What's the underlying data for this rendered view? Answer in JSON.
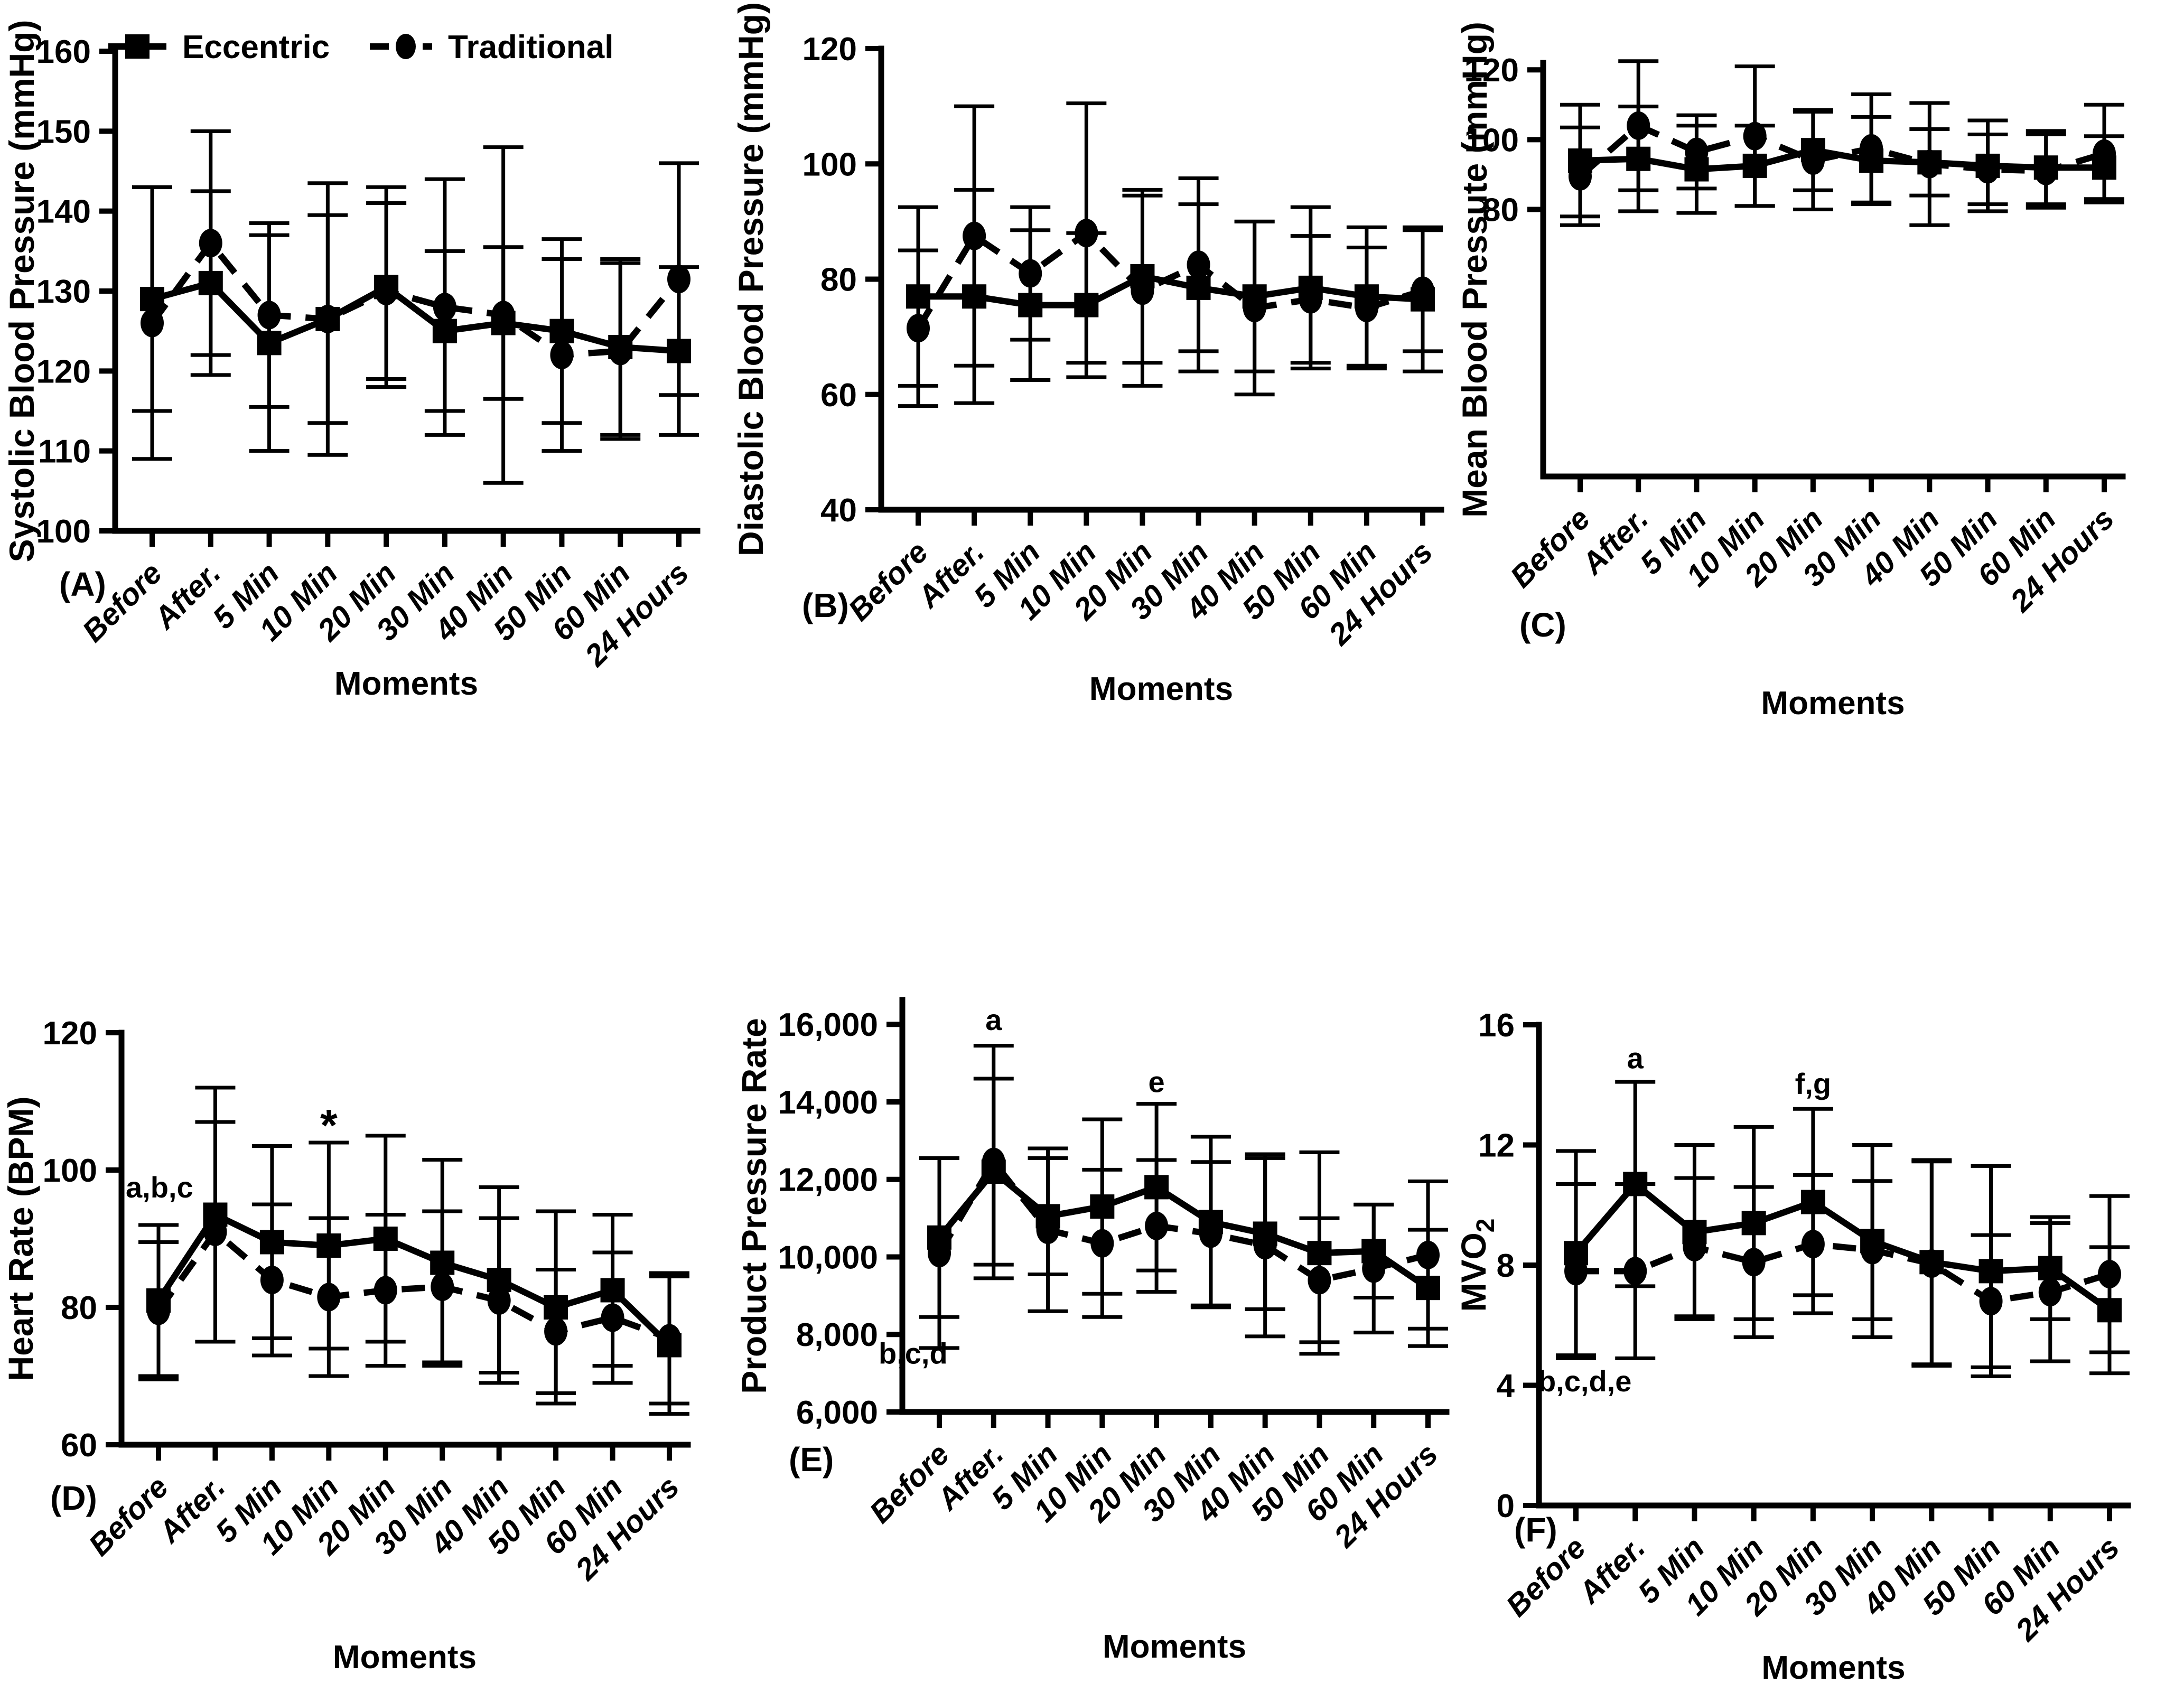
{
  "figure": {
    "background": "#ffffff",
    "ink": "#000000"
  },
  "legend": {
    "items": [
      {
        "label": "Eccentric",
        "marker": "square",
        "line": "solid"
      },
      {
        "label": "Traditional",
        "marker": "circle",
        "line": "dashed"
      }
    ]
  },
  "chart_data": [
    {
      "panel": "A",
      "letter": "(A)",
      "type": "line",
      "ylabel": "Systolic Blood Pressure (mmHg)",
      "xlabel": "Moments",
      "categories": [
        "Before",
        "After.",
        "5 Min",
        "10 Min",
        "20 Min",
        "30 Min",
        "40 Min",
        "50 Min",
        "60 Min",
        "24 Hours"
      ],
      "ylim": [
        100,
        160
      ],
      "yticks": [
        100,
        110,
        120,
        130,
        140,
        150,
        160
      ],
      "ytick_labels": [
        "100",
        "110",
        "120",
        "130",
        "140",
        "150",
        "160"
      ],
      "show_legend": true,
      "series": [
        {
          "name": "Eccentric",
          "marker": "square",
          "linestyle": "solid",
          "values": [
            129,
            131,
            123.5,
            126.5,
            130.5,
            125,
            126,
            125,
            123,
            122.5
          ],
          "sd": [
            14,
            11.5,
            13.5,
            13,
            12.5,
            10,
            9.5,
            11.5,
            11,
            10.5
          ]
        },
        {
          "name": "Traditional",
          "marker": "circle",
          "linestyle": "dashed",
          "values": [
            126,
            136,
            127,
            126.5,
            130,
            128,
            127,
            122,
            122.5,
            131.5
          ],
          "sd": [
            17,
            14,
            11.5,
            17,
            11,
            16,
            21,
            12,
            11,
            14.5
          ]
        }
      ],
      "annotations": []
    },
    {
      "panel": "B",
      "letter": "(B)",
      "type": "line",
      "ylabel": "Diastolic Blood Pressure (mmHg)",
      "xlabel": "Moments",
      "categories": [
        "Before",
        "After.",
        "5 Min",
        "10 Min",
        "20 Min",
        "30 Min",
        "40 Min",
        "50 Min",
        "60 Min",
        "24 Hours"
      ],
      "ylim": [
        40,
        120
      ],
      "yticks": [
        40,
        60,
        80,
        100,
        120
      ],
      "ytick_labels": [
        "40",
        "60",
        "80",
        "100",
        "120"
      ],
      "show_legend": false,
      "series": [
        {
          "name": "Eccentric",
          "marker": "square",
          "linestyle": "solid",
          "values": [
            77,
            77,
            75.5,
            75.5,
            80.5,
            78.5,
            77,
            78.5,
            77,
            76.5
          ],
          "sd": [
            15.5,
            18.5,
            13,
            12.5,
            15,
            14.5,
            13,
            14,
            12,
            12.5
          ]
        },
        {
          "name": "Traditional",
          "marker": "circle",
          "linestyle": "dashed",
          "values": [
            71.5,
            87.5,
            81,
            88,
            78,
            82.5,
            75,
            76.5,
            75,
            78
          ],
          "sd": [
            13.5,
            22.5,
            11.5,
            22.5,
            16.5,
            15,
            15,
            11,
            10.5,
            10.5
          ]
        }
      ],
      "annotations": []
    },
    {
      "panel": "C",
      "letter": "(C)",
      "type": "line",
      "ylabel": "Mean Blood Pressute (mmHg)",
      "xlabel": "Moments",
      "categories": [
        "Before",
        "After.",
        "5 Min",
        "10 Min",
        "20 Min",
        "30 Min",
        "40 Min",
        "50 Min",
        "60 Min",
        "24 Hours"
      ],
      "ylim": [
        3.5,
        122
      ],
      "yticks": [
        80,
        100,
        120
      ],
      "ytick_labels": [
        "80",
        "100",
        "120"
      ],
      "show_legend": false,
      "series": [
        {
          "name": "Eccentric",
          "marker": "square",
          "linestyle": "solid",
          "values": [
            94,
            94.5,
            91.5,
            92.5,
            97,
            94,
            93.5,
            92.5,
            92,
            92
          ],
          "sd": [
            16,
            15,
            12.5,
            11.5,
            11.5,
            12.5,
            9.5,
            13,
            10.5,
            9
          ]
        },
        {
          "name": "Traditional",
          "marker": "circle",
          "linestyle": "dashed",
          "values": [
            89.5,
            104,
            96.5,
            101,
            94,
            97.5,
            93,
            91.5,
            91,
            96
          ],
          "sd": [
            14,
            18.5,
            10.5,
            20,
            14,
            15.5,
            17.5,
            10,
            10.5,
            14
          ]
        }
      ],
      "annotations": []
    },
    {
      "panel": "D",
      "letter": "(D)",
      "type": "line",
      "ylabel": "Heart Rate (BPM)",
      "xlabel": "Moments",
      "categories": [
        "Before",
        "After.",
        "5 Min",
        "10 Min",
        "20 Min",
        "30 Min",
        "40 Min",
        "50 Min",
        "60 Min",
        "24 Hours"
      ],
      "ylim": [
        60,
        120
      ],
      "yticks": [
        60,
        80,
        100,
        120
      ],
      "ytick_labels": [
        "60",
        "80",
        "100",
        "120"
      ],
      "show_legend": false,
      "series": [
        {
          "name": "Eccentric",
          "marker": "square",
          "linestyle": "solid",
          "values": [
            81,
            93.5,
            89.5,
            89,
            90,
            86.5,
            84,
            80,
            82.5,
            74.5
          ],
          "sd": [
            11,
            18.5,
            14,
            15,
            15,
            15,
            13.5,
            14,
            11,
            10
          ]
        },
        {
          "name": "Traditional",
          "marker": "circle",
          "linestyle": "dashed",
          "values": [
            79.5,
            91,
            84,
            81.5,
            82.5,
            83,
            81,
            76.5,
            78.5,
            75.5
          ],
          "sd": [
            10,
            16,
            11,
            11.5,
            11,
            11,
            12,
            9,
            9.5,
            9.5
          ]
        }
      ],
      "annotations": [
        {
          "text": "a,b,c",
          "x": 0,
          "dx": -62,
          "y": 96,
          "anchor": "start",
          "size": 56
        },
        {
          "text": "*",
          "x": 3,
          "y": 104.3,
          "anchor": "middle",
          "size": 84
        }
      ]
    },
    {
      "panel": "E",
      "letter": "(E)",
      "type": "line",
      "ylabel": "Product Pressure Rate",
      "xlabel": "Moments",
      "categories": [
        "Before",
        "After.",
        "5 Min",
        "10 Min",
        "20 Min",
        "30 Min",
        "40 Min",
        "50 Min",
        "60 Min",
        "24 Hours"
      ],
      "ylim": [
        6000,
        16630
      ],
      "yticks": [
        6000,
        8000,
        10000,
        12000,
        14000,
        16000
      ],
      "ytick_labels": [
        "6,000",
        "8,000",
        "10,000",
        "12,000",
        "14,000",
        "16,000"
      ],
      "show_legend": false,
      "series": [
        {
          "name": "Eccentric",
          "marker": "square",
          "linestyle": "solid",
          "values": [
            10500,
            12200,
            11050,
            11300,
            11800,
            10900,
            10600,
            10100,
            10150,
            9200
          ],
          "sd": [
            2050,
            2400,
            1500,
            2250,
            2150,
            2200,
            1950,
            2600,
            1200,
            1500
          ]
        },
        {
          "name": "Traditional",
          "marker": "circle",
          "linestyle": "dashed",
          "values": [
            10100,
            12450,
            10700,
            10350,
            10800,
            10600,
            10300,
            9400,
            9700,
            10050
          ],
          "sd": [
            2450,
            3000,
            2100,
            1900,
            1700,
            1850,
            2350,
            1600,
            1650,
            1900
          ]
        }
      ],
      "annotations": [
        {
          "text": "a",
          "x": 1,
          "y": 15850,
          "anchor": "middle",
          "size": 56
        },
        {
          "text": "e",
          "x": 4,
          "y": 14250,
          "anchor": "middle",
          "size": 56
        },
        {
          "text": "b,c,d",
          "x": 0,
          "dx": -115,
          "y": 7250,
          "anchor": "start",
          "size": 56
        }
      ]
    },
    {
      "panel": "F",
      "letter": "(F)",
      "type": "line",
      "ylabel": [
        {
          "t": "MVO"
        },
        {
          "t": "2",
          "sub": true
        }
      ],
      "xlabel": "Moments",
      "categories": [
        "Before",
        "After.",
        "5 Min",
        "10 Min",
        "20 Min",
        "30 Min",
        "40 Min",
        "50 Min",
        "60 Min",
        "24 Hours"
      ],
      "ylim": [
        0,
        16
      ],
      "yticks": [
        0,
        4,
        8,
        12,
        16
      ],
      "ytick_labels": [
        "0",
        "4",
        "8",
        "12",
        "16"
      ],
      "show_legend": false,
      "series": [
        {
          "name": "Eccentric",
          "marker": "square",
          "linestyle": "solid",
          "values": [
            8.4,
            10.7,
            9.1,
            9.4,
            10.1,
            8.8,
            8.1,
            7.8,
            7.9,
            6.5
          ],
          "sd": [
            3.4,
            3.4,
            2.9,
            3.2,
            3.1,
            3.2,
            3.4,
            3.5,
            1.7,
            2.1
          ]
        },
        {
          "name": "Traditional",
          "marker": "circle",
          "linestyle": "dashed",
          "values": [
            7.8,
            7.8,
            8.6,
            8.1,
            8.7,
            8.5,
            8.05,
            6.8,
            7.1,
            7.7
          ],
          "sd": [
            2.9,
            2.9,
            2.3,
            2.5,
            2.3,
            2.3,
            3.4,
            2.2,
            2.3,
            2.6
          ]
        }
      ],
      "annotations": [
        {
          "text": "a",
          "x": 1,
          "y": 14.55,
          "anchor": "middle",
          "size": 56
        },
        {
          "text": "f,g",
          "x": 4,
          "y": 13.7,
          "anchor": "middle",
          "size": 56
        },
        {
          "text": "b,c,d,e",
          "x": 0,
          "dx": -72,
          "y": 3.8,
          "anchor": "start",
          "size": 56
        }
      ]
    }
  ]
}
